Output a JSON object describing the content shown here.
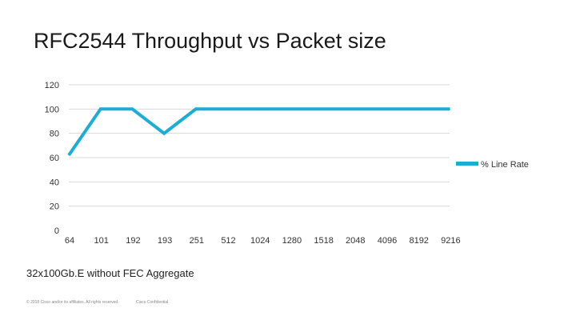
{
  "slide": {
    "title": "RFC2544 Throughput vs Packet size",
    "subtitle": "32x100Gb.E without FEC Aggregate",
    "footer_copyright": "© 2018 Cisco and/or its affiliates. All rights reserved.",
    "footer_confidential": "Cisco Confidential"
  },
  "chart_data": {
    "type": "line",
    "title": "",
    "xlabel": "",
    "ylabel": "",
    "categories": [
      "64",
      "101",
      "192",
      "193",
      "251",
      "512",
      "1024",
      "1280",
      "1518",
      "2048",
      "4096",
      "8192",
      "9216"
    ],
    "series": [
      {
        "name": "% Line Rate",
        "color": "#1aaed6",
        "values": [
          62,
          100,
          100,
          80,
          100,
          100,
          100,
          100,
          100,
          100,
          100,
          100,
          100
        ]
      }
    ],
    "ylim": [
      0,
      120
    ],
    "yticks": [
      0,
      20,
      40,
      60,
      80,
      100,
      120
    ],
    "grid": true,
    "legend_position": "right",
    "gridline_color": "#d9d9d9"
  }
}
